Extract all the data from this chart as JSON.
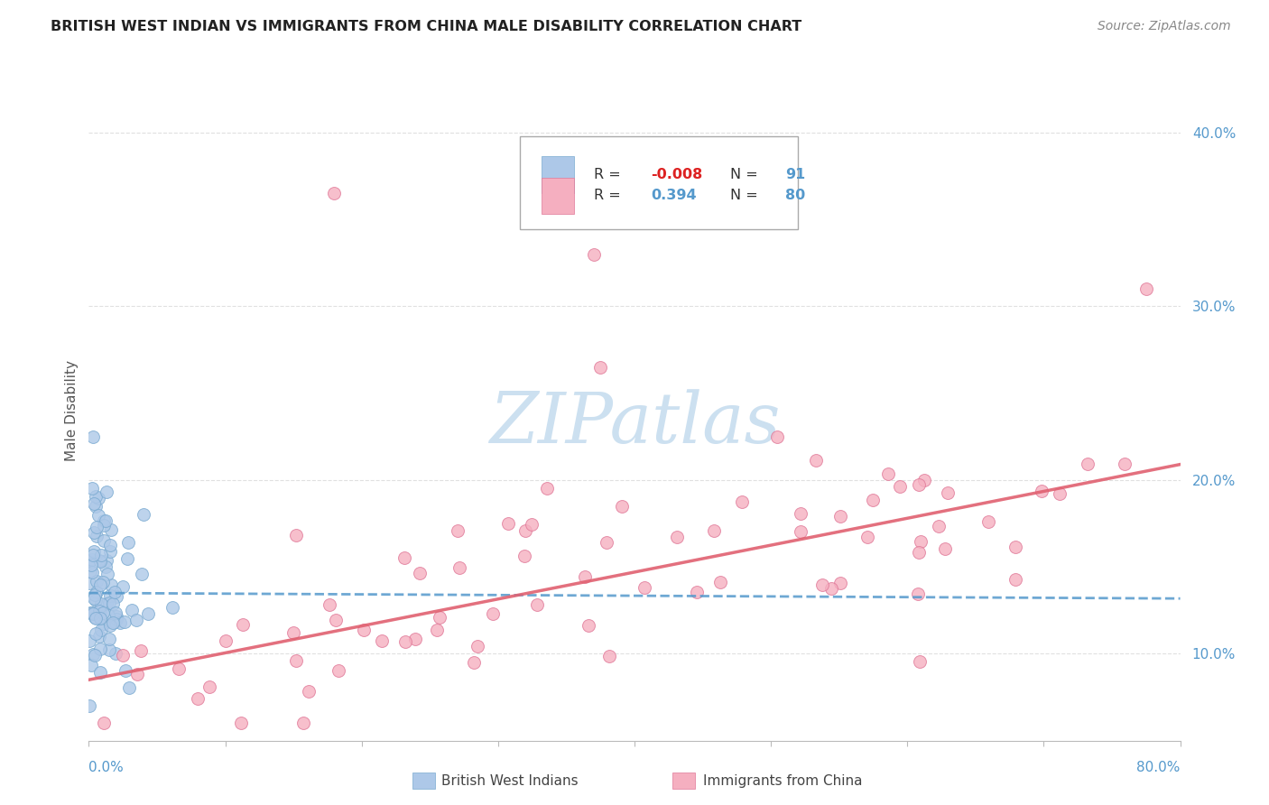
{
  "title": "BRITISH WEST INDIAN VS IMMIGRANTS FROM CHINA MALE DISABILITY CORRELATION CHART",
  "source": "Source: ZipAtlas.com",
  "ylabel": "Male Disability",
  "color_blue_fill": "#adc8e8",
  "color_blue_edge": "#7aaad0",
  "color_pink_fill": "#f5afc0",
  "color_pink_edge": "#e07898",
  "color_blue_line": "#5599cc",
  "color_pink_line": "#e06070",
  "watermark_color": "#cce0f0",
  "grid_color": "#dddddd",
  "ytick_color": "#5599cc",
  "title_color": "#222222",
  "source_color": "#888888",
  "legend_text_color": "#333333",
  "legend_R1_color": "#dd2222",
  "legend_N_color": "#5599cc",
  "bottom_legend_color": "#444444",
  "xlim": [
    0,
    80
  ],
  "ylim": [
    5,
    43
  ],
  "yticks": [
    10,
    20,
    30,
    40
  ],
  "ytick_labels": [
    "10.0%",
    "20.0%",
    "30.0%",
    "40.0%"
  ],
  "bwi_trend_intercept": 13.5,
  "bwi_trend_slope": -0.004,
  "china_trend_intercept": 8.5,
  "china_trend_slope": 0.155
}
